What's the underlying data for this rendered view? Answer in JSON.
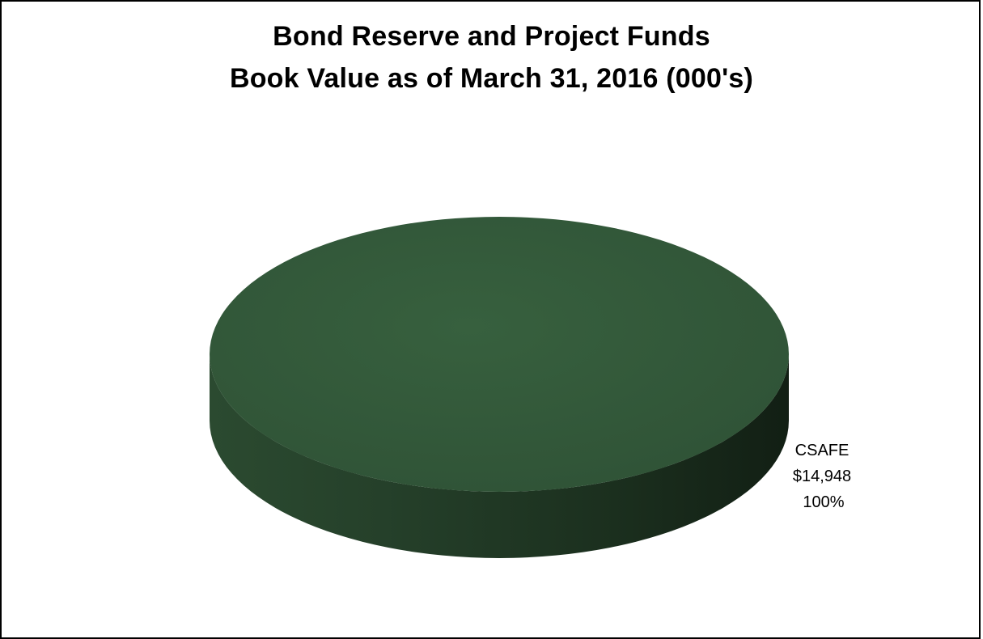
{
  "chart_data": {
    "type": "pie",
    "title_lines": [
      "Bond Reserve and Project Funds",
      "Book Value as of March 31, 2016 (000's)"
    ],
    "categories": [
      "CSAFE"
    ],
    "values": [
      14948
    ],
    "labels": [
      {
        "category": "CSAFE",
        "value_text": "$14,948",
        "percent_text": "100%"
      }
    ],
    "colors": [
      "#34573a"
    ],
    "legend": "none"
  }
}
